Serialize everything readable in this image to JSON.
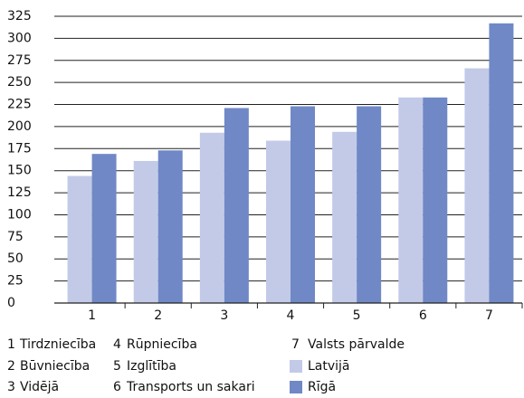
{
  "chart_data": {
    "type": "bar",
    "categories": [
      "1",
      "2",
      "3",
      "4",
      "5",
      "6",
      "7"
    ],
    "category_names": [
      "Tirdzniecība",
      "Būvniecība",
      "Vidējā",
      "Rūpniecība",
      "Izglītība",
      "Transports un sakari",
      "Valsts pārvalde"
    ],
    "series": [
      {
        "name": "Latvijā",
        "color": "#c2cae8",
        "values": [
          144,
          161,
          193,
          184,
          194,
          233,
          266
        ]
      },
      {
        "name": "Rīgā",
        "color": "#7088c6",
        "values": [
          169,
          173,
          221,
          223,
          223,
          233,
          317
        ]
      }
    ],
    "ylim": [
      0,
      325
    ],
    "yticks": [
      0,
      25,
      50,
      75,
      100,
      125,
      150,
      175,
      200,
      225,
      250,
      275,
      300,
      325
    ],
    "grid": true,
    "legend": "bottom"
  }
}
